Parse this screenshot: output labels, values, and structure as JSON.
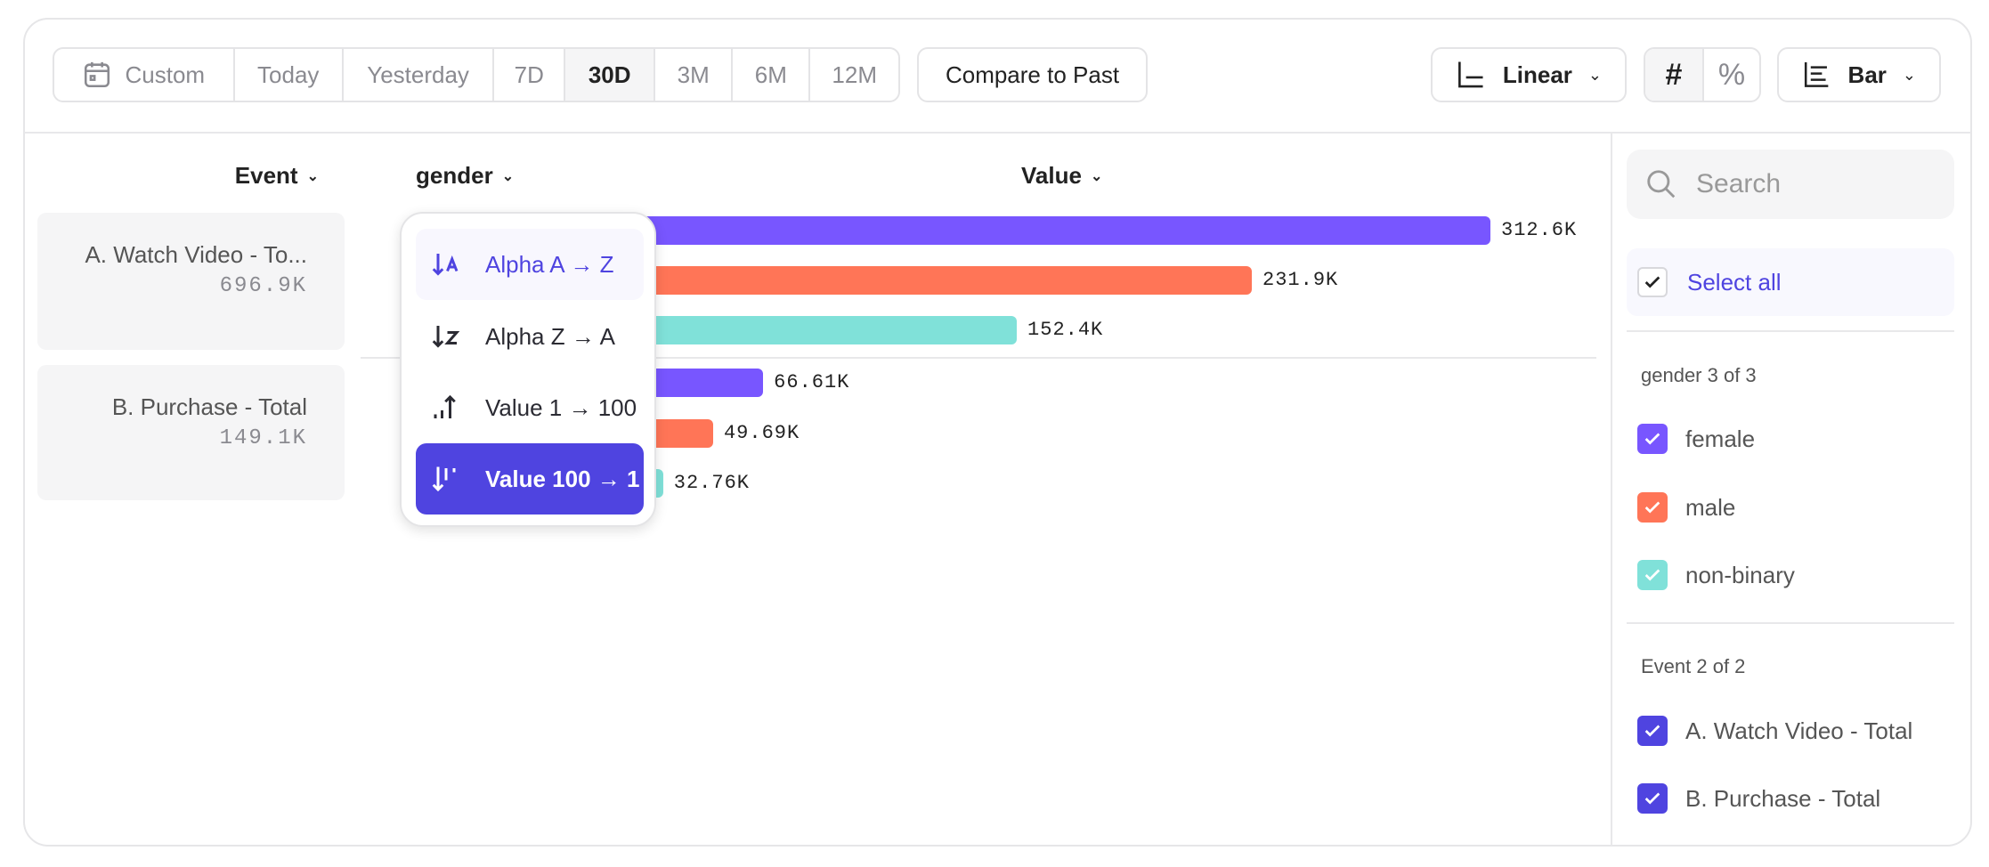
{
  "toolbar": {
    "date_ranges": [
      {
        "label": "Custom",
        "icon": "calendar-icon"
      },
      {
        "label": "Today"
      },
      {
        "label": "Yesterday"
      },
      {
        "label": "7D"
      },
      {
        "label": "30D",
        "selected": true
      },
      {
        "label": "3M"
      },
      {
        "label": "6M"
      },
      {
        "label": "12M"
      }
    ],
    "compare_label": "Compare to Past",
    "scale_label": "Linear",
    "value_modes": [
      "#",
      "%"
    ],
    "selected_value_mode": "#",
    "chart_type_label": "Bar"
  },
  "columns": {
    "event": "Event",
    "gender": "gender",
    "value": "Value"
  },
  "events": [
    {
      "name": "A. Watch Video - To...",
      "total": "696.9K"
    },
    {
      "name": "B. Purchase - Total",
      "total": "149.1K"
    }
  ],
  "chart_data": {
    "type": "bar",
    "orientation": "horizontal",
    "groups": [
      "A. Watch Video - Total",
      "B. Purchase - Total"
    ],
    "series": [
      {
        "name": "female",
        "color": "#7856FF",
        "values": [
          312.6,
          66.61
        ],
        "labels": [
          "312.6K",
          "66.61K"
        ]
      },
      {
        "name": "male",
        "color": "#FF7557",
        "values": [
          231.9,
          49.69
        ],
        "labels": [
          "231.9K",
          "49.69K"
        ]
      },
      {
        "name": "non-binary",
        "color": "#80E1D9",
        "values": [
          152.4,
          32.76
        ],
        "labels": [
          "152.4K",
          "32.76K"
        ]
      }
    ],
    "unit": "K"
  },
  "sort_menu": {
    "items": [
      {
        "label": "Alpha A → Z",
        "icon": "sort-alpha-asc-icon",
        "state": "hover"
      },
      {
        "label": "Alpha Z → A",
        "icon": "sort-alpha-desc-icon"
      },
      {
        "label": "Value 1 → 100",
        "icon": "sort-value-asc-icon"
      },
      {
        "label": "Value 100 → 1",
        "icon": "sort-value-desc-icon",
        "state": "selected"
      }
    ]
  },
  "legend": {
    "search_placeholder": "Search",
    "select_all": "Select all",
    "gender_heading": "gender 3 of 3",
    "gender_items": [
      {
        "label": "female",
        "color": "#7856FF"
      },
      {
        "label": "male",
        "color": "#FF7557"
      },
      {
        "label": "non-binary",
        "color": "#80E1D9"
      }
    ],
    "event_heading": "Event 2 of 2",
    "event_items": [
      {
        "label": "A. Watch Video - Total",
        "color": "#4F44E0"
      },
      {
        "label": "B. Purchase - Total",
        "color": "#4F44E0"
      }
    ]
  },
  "colors": {
    "accent": "#4F44E0"
  }
}
